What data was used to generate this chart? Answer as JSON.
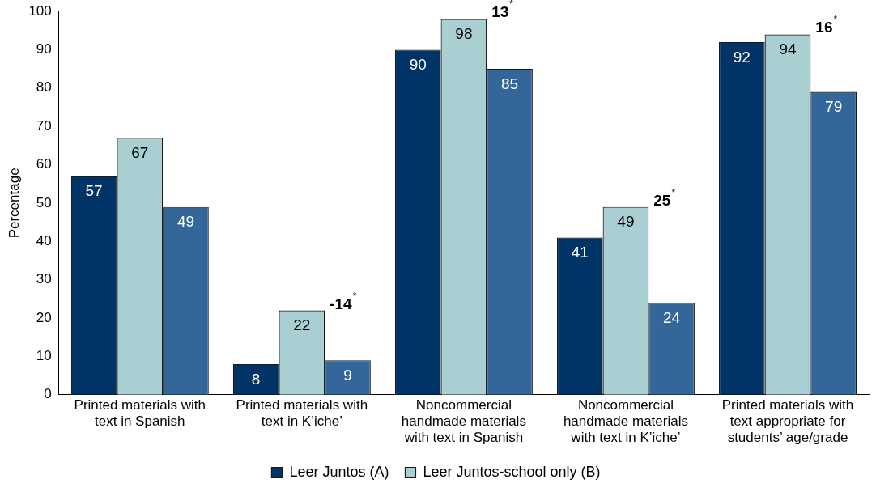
{
  "chart_data": {
    "type": "bar",
    "ylabel": "Percentage",
    "categories": [
      "Printed materials with text in Spanish",
      "Printed materials with text in K’iche’",
      "Noncommercial handmade materials with text in Spanish",
      "Noncommercial handmade materials with text in K’iche’",
      "Printed materials with text appropriate for students’ age/grade"
    ],
    "series": [
      {
        "name": "Leer Juntos (A)",
        "color": "#003366",
        "values": [
          57,
          8,
          90,
          41,
          92
        ]
      },
      {
        "name": "Leer Juntos-school only (B)",
        "color": "#a9cfd2",
        "values": [
          67,
          22,
          98,
          49,
          94
        ]
      },
      {
        "color": "#336699",
        "values": [
          49,
          9,
          85,
          24,
          79
        ]
      }
    ],
    "ylim": [
      0,
      100
    ],
    "yticks": [
      0,
      10,
      20,
      30,
      40,
      50,
      60,
      70,
      80,
      90,
      100
    ],
    "data_labels": true,
    "legend": "bottom",
    "annotations": [
      {
        "text": "-14$^{*}$",
        "x": "Printed materials with text in K’iche’",
        "y": 22
      },
      {
        "text": "13$^{*}$",
        "x": "Noncommercial handmade materials with text in Spanish",
        "y": 98
      },
      {
        "text": "25$^{*}$",
        "x": "Noncommercial handmade materials with text in K’iche’",
        "y": 49
      },
      {
        "text": "16$^{*}$",
        "x": "Printed materials with text appropriate for students’ age/grade",
        "y": 94
      }
    ]
  }
}
